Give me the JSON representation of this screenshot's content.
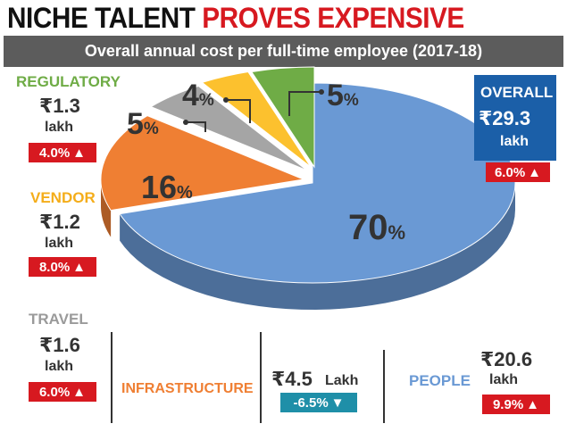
{
  "title": {
    "part1": "NICHE TALENT",
    "part2": "PROVES EXPENSIVE"
  },
  "subtitle": "Overall annual cost per full-time employee (2017-18)",
  "colors": {
    "people": "#6a99d4",
    "infrastructure": "#ef7f33",
    "travel": "#a5a5a5",
    "vendor": "#fcc12e",
    "regulatory": "#6fac46",
    "up": "#d71920",
    "down": "#1f8fa8",
    "overall": "#1b5fa8"
  },
  "overall": {
    "label": "OVERALL",
    "amount": "₹29.3",
    "unit": "lakh",
    "change": "6.0%",
    "direction": "up"
  },
  "categories": {
    "regulatory": {
      "label": "REGULATORY",
      "amount": "₹1.3",
      "unit": "lakh",
      "change": "4.0%",
      "direction": "up"
    },
    "vendor": {
      "label": "VENDOR",
      "amount": "₹1.2",
      "unit": "lakh",
      "change": "8.0%",
      "direction": "up"
    },
    "travel": {
      "label": "TRAVEL",
      "amount": "₹1.6",
      "unit": "lakh",
      "change": "6.0%",
      "direction": "up"
    },
    "infrastructure": {
      "label": "INFRASTRUCTURE",
      "amount": "₹4.5",
      "unit": "Lakh",
      "change": "-6.5%",
      "direction": "down"
    },
    "people": {
      "label": "PEOPLE",
      "amount": "₹20.6",
      "unit": "lakh",
      "change": "9.9%",
      "direction": "up"
    }
  },
  "chart_data": {
    "type": "pie",
    "title": "NICHE TALENT PROVES EXPENSIVE",
    "subtitle": "Overall annual cost per full-time employee (2017-18)",
    "unit": "%",
    "slices": [
      {
        "name": "PEOPLE",
        "value": 70,
        "label": "70%",
        "color": "#6a99d4"
      },
      {
        "name": "INFRASTRUCTURE",
        "value": 16,
        "label": "16%",
        "color": "#ef7f33"
      },
      {
        "name": "TRAVEL",
        "value": 5,
        "label": "5%",
        "color": "#a5a5a5"
      },
      {
        "name": "VENDOR",
        "value": 4,
        "label": "4%",
        "color": "#fcc12e"
      },
      {
        "name": "REGULATORY",
        "value": 5,
        "label": "5%",
        "color": "#6fac46"
      }
    ]
  }
}
